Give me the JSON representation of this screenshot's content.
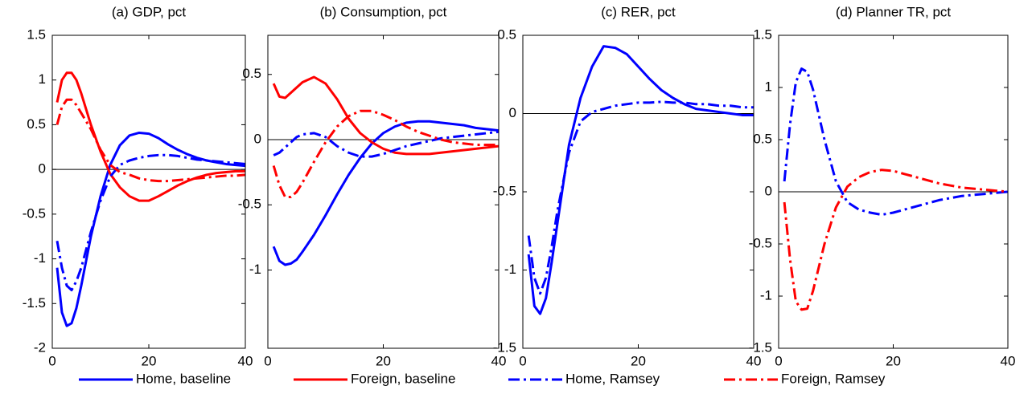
{
  "chart_data": [
    {
      "type": "line",
      "title": "(a) GDP, pct",
      "x": [
        1,
        2,
        3,
        4,
        5,
        6,
        8,
        10,
        12,
        14,
        16,
        18,
        20,
        22,
        24,
        26,
        28,
        30,
        32,
        34,
        36,
        38,
        40
      ],
      "xlim": [
        0,
        40
      ],
      "xticks": [
        0,
        20,
        40
      ],
      "ylim": [
        -2,
        1.5
      ],
      "yticks": [
        -2,
        -1.5,
        -1,
        -0.5,
        0,
        0.5,
        1,
        1.5
      ],
      "hline": 0,
      "series": [
        {
          "name": "Home, baseline",
          "color": "#0000ff",
          "dash": "solid",
          "values": [
            -1.1,
            -1.6,
            -1.75,
            -1.72,
            -1.55,
            -1.3,
            -0.75,
            -0.3,
            0.05,
            0.27,
            0.38,
            0.41,
            0.4,
            0.35,
            0.28,
            0.22,
            0.17,
            0.13,
            0.1,
            0.08,
            0.06,
            0.05,
            0.04
          ]
        },
        {
          "name": "Foreign, baseline",
          "color": "#ff0000",
          "dash": "solid",
          "values": [
            0.75,
            1.0,
            1.08,
            1.08,
            1.0,
            0.85,
            0.5,
            0.2,
            -0.05,
            -0.2,
            -0.3,
            -0.35,
            -0.35,
            -0.3,
            -0.24,
            -0.18,
            -0.13,
            -0.09,
            -0.06,
            -0.04,
            -0.03,
            -0.02,
            -0.02
          ]
        },
        {
          "name": "Home, Ramsey",
          "color": "#0000ff",
          "dash": "dashdot",
          "values": [
            -0.8,
            -1.1,
            -1.3,
            -1.35,
            -1.25,
            -1.1,
            -0.7,
            -0.35,
            -0.08,
            0.05,
            0.1,
            0.13,
            0.15,
            0.16,
            0.16,
            0.15,
            0.13,
            0.11,
            0.1,
            0.09,
            0.08,
            0.07,
            0.06
          ]
        },
        {
          "name": "Foreign, Ramsey",
          "color": "#ff0000",
          "dash": "dashdot",
          "values": [
            0.5,
            0.7,
            0.78,
            0.78,
            0.72,
            0.63,
            0.45,
            0.22,
            0.05,
            -0.03,
            -0.06,
            -0.1,
            -0.12,
            -0.13,
            -0.13,
            -0.12,
            -0.11,
            -0.1,
            -0.09,
            -0.08,
            -0.07,
            -0.07,
            -0.06
          ]
        }
      ]
    },
    {
      "type": "line",
      "title": "(b) Consumption, pct",
      "x": [
        1,
        2,
        3,
        4,
        5,
        6,
        8,
        10,
        12,
        14,
        16,
        18,
        20,
        22,
        24,
        26,
        28,
        30,
        32,
        34,
        36,
        38,
        40
      ],
      "xlim": [
        0,
        40
      ],
      "xticks": [
        0,
        20,
        40
      ],
      "ylim": [
        -1.6,
        0.8
      ],
      "yticks": [
        -1,
        -0.5,
        0,
        0.5
      ],
      "hline": 0,
      "series": [
        {
          "color": "#0000ff",
          "dash": "solid",
          "values": [
            -0.82,
            -0.93,
            -0.96,
            -0.95,
            -0.92,
            -0.86,
            -0.73,
            -0.58,
            -0.42,
            -0.27,
            -0.14,
            -0.03,
            0.05,
            0.1,
            0.13,
            0.14,
            0.14,
            0.13,
            0.12,
            0.11,
            0.09,
            0.08,
            0.07
          ]
        },
        {
          "color": "#ff0000",
          "dash": "solid",
          "values": [
            0.43,
            0.33,
            0.32,
            0.36,
            0.4,
            0.44,
            0.48,
            0.43,
            0.31,
            0.16,
            0.05,
            -0.02,
            -0.07,
            -0.1,
            -0.11,
            -0.11,
            -0.11,
            -0.1,
            -0.09,
            -0.08,
            -0.07,
            -0.06,
            -0.05
          ]
        },
        {
          "color": "#0000ff",
          "dash": "dashdot",
          "values": [
            -0.12,
            -0.1,
            -0.06,
            -0.02,
            0.02,
            0.04,
            0.05,
            0.02,
            -0.05,
            -0.1,
            -0.13,
            -0.13,
            -0.11,
            -0.08,
            -0.05,
            -0.03,
            -0.01,
            0.01,
            0.02,
            0.03,
            0.04,
            0.05,
            0.06
          ]
        },
        {
          "color": "#ff0000",
          "dash": "dashdot",
          "values": [
            -0.2,
            -0.35,
            -0.44,
            -0.44,
            -0.4,
            -0.33,
            -0.17,
            -0.02,
            0.1,
            0.18,
            0.22,
            0.22,
            0.19,
            0.15,
            0.1,
            0.06,
            0.03,
            0.0,
            -0.02,
            -0.03,
            -0.04,
            -0.04,
            -0.04
          ]
        }
      ]
    },
    {
      "type": "line",
      "title": "(c) RER, pct",
      "x": [
        1,
        2,
        3,
        4,
        5,
        6,
        8,
        10,
        12,
        14,
        16,
        18,
        20,
        22,
        24,
        26,
        28,
        30,
        32,
        34,
        36,
        38,
        40
      ],
      "xlim": [
        0,
        40
      ],
      "xticks": [
        0,
        20,
        40
      ],
      "ylim": [
        -1.5,
        0.5
      ],
      "yticks": [
        -1.5,
        -1,
        -0.5,
        0,
        0.5
      ],
      "hline": 0,
      "series": [
        {
          "color": "#0000ff",
          "dash": "solid",
          "values": [
            -0.9,
            -1.23,
            -1.28,
            -1.18,
            -0.95,
            -0.7,
            -0.2,
            0.1,
            0.3,
            0.43,
            0.42,
            0.38,
            0.3,
            0.22,
            0.15,
            0.1,
            0.06,
            0.03,
            0.02,
            0.01,
            0.0,
            -0.01,
            -0.01
          ]
        },
        {
          "color": "#0000ff",
          "dash": "dashdot",
          "values": [
            -0.78,
            -1.05,
            -1.15,
            -1.05,
            -0.85,
            -0.62,
            -0.25,
            -0.05,
            0.01,
            0.03,
            0.05,
            0.06,
            0.07,
            0.07,
            0.075,
            0.07,
            0.07,
            0.06,
            0.06,
            0.05,
            0.05,
            0.04,
            0.04
          ]
        }
      ]
    },
    {
      "type": "line",
      "title": "(d) Planner TR, pct",
      "x": [
        1,
        2,
        3,
        4,
        5,
        6,
        8,
        10,
        12,
        14,
        16,
        18,
        20,
        22,
        24,
        26,
        28,
        30,
        32,
        34,
        36,
        38,
        40
      ],
      "xlim": [
        0,
        40
      ],
      "xticks": [
        0,
        20,
        40
      ],
      "ylim": [
        -1.5,
        1.5
      ],
      "yticks": [
        -1.5,
        -1,
        -0.5,
        0,
        0.5,
        1,
        1.5
      ],
      "hline": 0,
      "series": [
        {
          "color": "#0000ff",
          "dash": "dashdot",
          "values": [
            0.1,
            0.65,
            1.05,
            1.18,
            1.15,
            0.98,
            0.5,
            0.1,
            -0.1,
            -0.17,
            -0.2,
            -0.22,
            -0.2,
            -0.17,
            -0.14,
            -0.11,
            -0.08,
            -0.06,
            -0.04,
            -0.03,
            -0.02,
            -0.01,
            0
          ]
        },
        {
          "color": "#ff0000",
          "dash": "dashdot",
          "values": [
            -0.1,
            -0.65,
            -1.05,
            -1.13,
            -1.12,
            -0.95,
            -0.5,
            -0.15,
            0.05,
            0.14,
            0.19,
            0.21,
            0.2,
            0.17,
            0.14,
            0.11,
            0.08,
            0.06,
            0.04,
            0.03,
            0.02,
            0.01,
            0
          ]
        }
      ]
    }
  ]
}
